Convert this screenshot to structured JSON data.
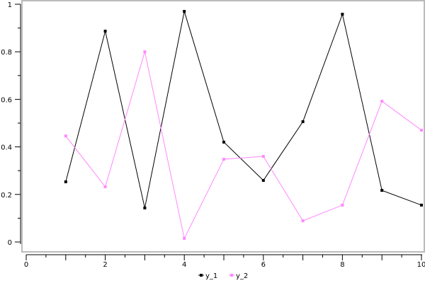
{
  "chart_data": {
    "type": "line",
    "x": [
      1,
      2,
      3,
      4,
      5,
      6,
      7,
      8,
      9,
      10
    ],
    "series": [
      {
        "name": "y_1",
        "color": "#000000",
        "values": [
          0.253,
          0.887,
          0.143,
          0.97,
          0.42,
          0.259,
          0.506,
          0.958,
          0.217,
          0.155
        ]
      },
      {
        "name": "y_2",
        "color": "#ff88ff",
        "values": [
          0.446,
          0.232,
          0.8,
          0.015,
          0.348,
          0.36,
          0.089,
          0.155,
          0.592,
          0.47
        ]
      }
    ],
    "xlim": [
      0,
      10
    ],
    "ylim": [
      0,
      1
    ],
    "xticks": [
      "0",
      "2",
      "4",
      "6",
      "8",
      "10"
    ],
    "yticks": [
      "0",
      "0.2",
      "0.4",
      "0.6",
      "0.8",
      "1"
    ],
    "grid": false,
    "legend": "bottom-center",
    "title": "",
    "xlabel": "",
    "ylabel": ""
  }
}
